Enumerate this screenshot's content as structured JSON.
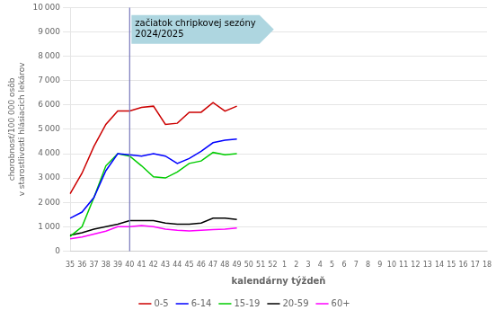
{
  "chart_data": {
    "type": "line",
    "xlabel": "kalendárny týždeň",
    "ylabel": "chorobnosť/100 000 osôb\nv starostlivosti hlásiacich lekárov",
    "categories": [
      "35",
      "36",
      "37",
      "38",
      "39",
      "40",
      "41",
      "42",
      "43",
      "44",
      "45",
      "46",
      "47",
      "48",
      "49",
      "50",
      "51",
      "52",
      "1",
      "2",
      "3",
      "4",
      "5",
      "6",
      "7",
      "8",
      "9",
      "10",
      "11",
      "12",
      "13",
      "14",
      "15",
      "16",
      "17",
      "18"
    ],
    "series": [
      {
        "name": "0-5",
        "color": "#cc0000",
        "values": [
          2350,
          3200,
          4300,
          5200,
          5750,
          5750,
          5900,
          5950,
          5200,
          5250,
          5700,
          5700,
          6100,
          5750,
          5950,
          null,
          null,
          null,
          null,
          null,
          null,
          null,
          null,
          null,
          null,
          null,
          null,
          null,
          null,
          null,
          null,
          null,
          null,
          null,
          null,
          null
        ]
      },
      {
        "name": "6-14",
        "color": "#0000ff",
        "values": [
          1350,
          1600,
          2200,
          3300,
          4000,
          3950,
          3900,
          4000,
          3900,
          3600,
          3800,
          4100,
          4450,
          4550,
          4600,
          null,
          null,
          null,
          null,
          null,
          null,
          null,
          null,
          null,
          null,
          null,
          null,
          null,
          null,
          null,
          null,
          null,
          null,
          null,
          null,
          null
        ]
      },
      {
        "name": "15-19",
        "color": "#00cc00",
        "values": [
          600,
          1000,
          2200,
          3500,
          4000,
          3900,
          3500,
          3050,
          3000,
          3250,
          3600,
          3700,
          4050,
          3950,
          4000,
          null,
          null,
          null,
          null,
          null,
          null,
          null,
          null,
          null,
          null,
          null,
          null,
          null,
          null,
          null,
          null,
          null,
          null,
          null,
          null,
          null
        ]
      },
      {
        "name": "20-59",
        "color": "#000000",
        "values": [
          650,
          750,
          900,
          1000,
          1100,
          1250,
          1250,
          1250,
          1150,
          1100,
          1100,
          1150,
          1350,
          1350,
          1300,
          null,
          null,
          null,
          null,
          null,
          null,
          null,
          null,
          null,
          null,
          null,
          null,
          null,
          null,
          null,
          null,
          null,
          null,
          null,
          null,
          null
        ]
      },
      {
        "name": "60+",
        "color": "#ff00ff",
        "values": [
          500,
          580,
          700,
          820,
          1000,
          1000,
          1050,
          1000,
          900,
          850,
          830,
          850,
          880,
          900,
          950,
          null,
          null,
          null,
          null,
          null,
          null,
          null,
          null,
          null,
          null,
          null,
          null,
          null,
          null,
          null,
          null,
          null,
          null,
          null,
          null,
          null
        ]
      }
    ],
    "ylim": [
      0,
      10000
    ],
    "yticks": [
      0,
      {
        "value": 1000,
        "label": "1 000"
      },
      {
        "value": 2000,
        "label": "2 000"
      },
      {
        "value": 3000,
        "label": "3 000"
      },
      {
        "value": 4000,
        "label": "4 000"
      },
      {
        "value": 5000,
        "label": "5 000"
      },
      {
        "value": 6000,
        "label": "6 000"
      },
      {
        "value": 7000,
        "label": "7 000"
      },
      {
        "value": 8000,
        "label": "8 000"
      },
      {
        "value": 9000,
        "label": "9 000"
      },
      {
        "value": 10000,
        "label": "10 000"
      }
    ],
    "vlines": [
      {
        "x": "40",
        "color": "#7777bb"
      }
    ],
    "annotations": [
      {
        "text": "začiatok chripkovej sezóny\n2024/2025",
        "x": "40",
        "y": 9100,
        "color": "#aed6e0"
      }
    ],
    "grid": true,
    "legend": "bottom"
  }
}
